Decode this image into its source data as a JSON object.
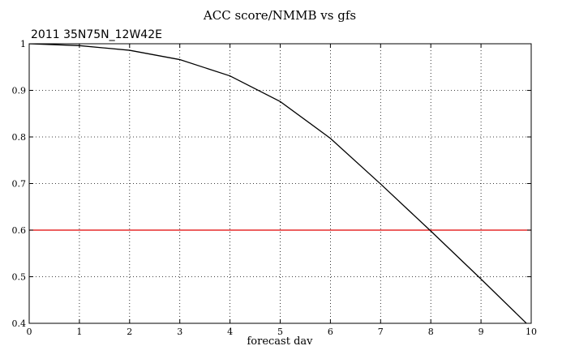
{
  "chart_data": {
    "type": "line",
    "title": "ACC score/NMMB vs gfs",
    "subtitle": "2011 35N75N_12W42E",
    "xlabel": "forecast dav",
    "ylabel": "",
    "xlim": [
      0,
      10
    ],
    "ylim": [
      0.4,
      1.0
    ],
    "xticks": [
      0,
      1,
      2,
      3,
      4,
      5,
      6,
      7,
      8,
      9,
      10
    ],
    "yticks": [
      0.4,
      0.5,
      0.6,
      0.7,
      0.8,
      0.9,
      1.0
    ],
    "ytick_labels": [
      "0.4",
      "0.5",
      "0.6",
      "0.7",
      "0.8",
      "0.9",
      "1"
    ],
    "grid": true,
    "series": [
      {
        "color": "#000000",
        "x": [
          0,
          1,
          2,
          3,
          4,
          5,
          6,
          7,
          8,
          9,
          10
        ],
        "y": [
          1.0,
          0.996,
          0.986,
          0.966,
          0.931,
          0.876,
          0.797,
          0.699,
          0.598,
          0.495,
          0.39
        ]
      }
    ],
    "reference_lines": [
      {
        "y": 0.6,
        "color": "#e00000"
      }
    ]
  }
}
